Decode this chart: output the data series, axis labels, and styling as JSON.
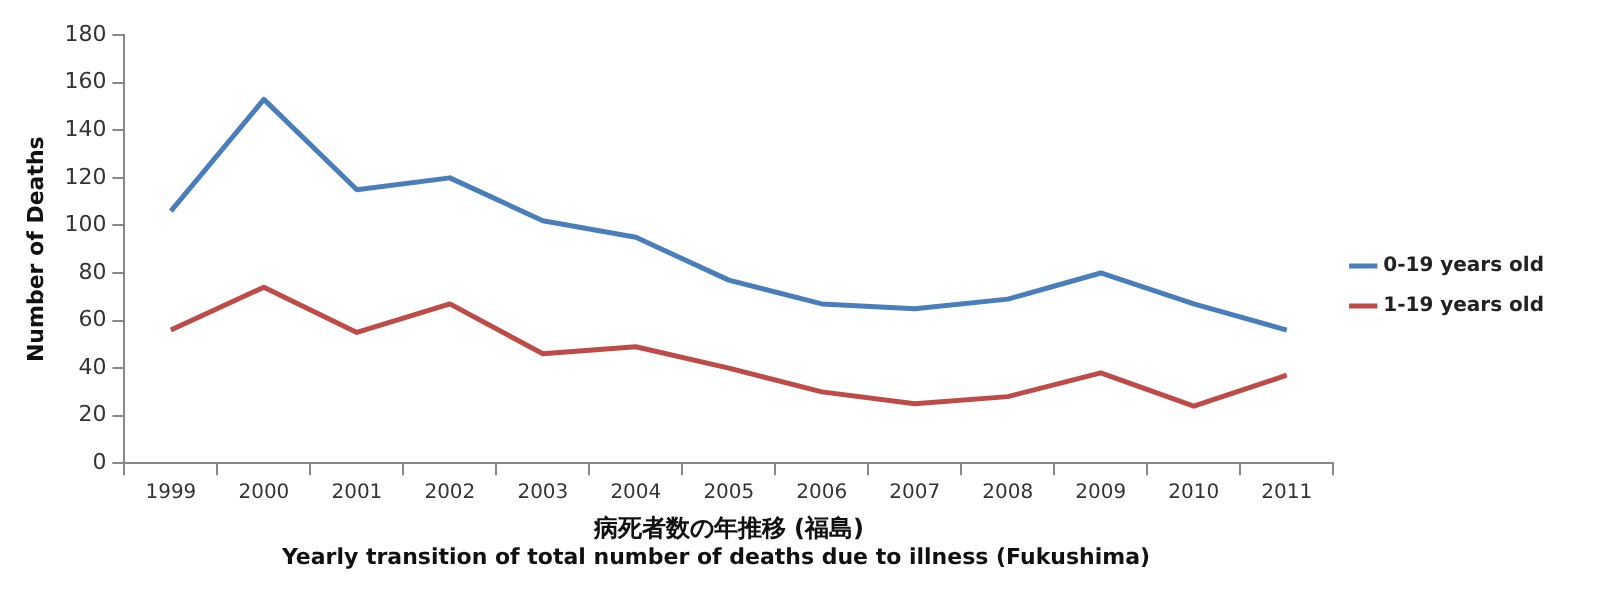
{
  "chart_data": {
    "type": "line",
    "xlabel": "病死者数の年推移 (福島)",
    "ylabel": "Number of Deaths",
    "annotations": [
      "Yearly transition of total number of deaths due to illness (Fukushima)"
    ],
    "categories": [
      "1999",
      "2000",
      "2001",
      "2002",
      "2003",
      "2004",
      "2005",
      "2006",
      "2007",
      "2008",
      "2009",
      "2010",
      "2011"
    ],
    "series": [
      {
        "name": "0-19 years old",
        "color": "#4a7ebb",
        "values": [
          106,
          153,
          115,
          120,
          102,
          95,
          77,
          67,
          65,
          69,
          80,
          67,
          56
        ]
      },
      {
        "name": "1-19 years old",
        "color": "#be4b48",
        "values": [
          56,
          74,
          55,
          67,
          46,
          49,
          40,
          30,
          25,
          28,
          38,
          24,
          37
        ]
      }
    ],
    "ylim": [
      0,
      180
    ],
    "yticks": [
      0,
      20,
      40,
      60,
      80,
      100,
      120,
      140,
      160,
      180
    ],
    "grid": false,
    "legend": "right",
    "marker": "none",
    "line_style": "solid"
  }
}
